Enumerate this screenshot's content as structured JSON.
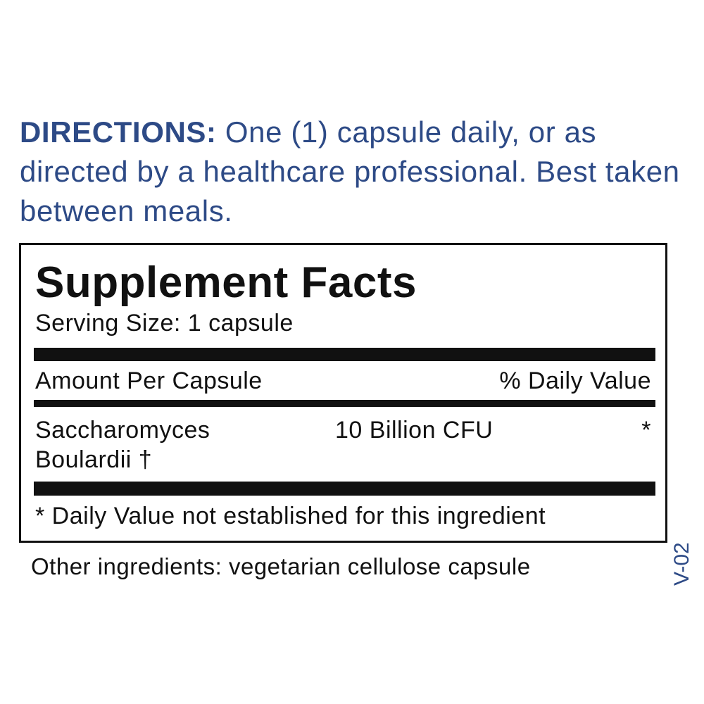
{
  "directions": {
    "label": "DIRECTIONS:",
    "text": " One (1) capsule daily, or as directed by a healthcare professional. Best taken between meals."
  },
  "facts": {
    "title": "Supplement Facts",
    "serving_size": "Serving Size: 1 capsule",
    "header_amount": "Amount Per Capsule",
    "header_dv": "% Daily Value",
    "ingredients": [
      {
        "name_line1": "Saccharomyces",
        "name_line2": "Boulardii †",
        "amount": "10 Billion CFU",
        "dv": "*"
      }
    ],
    "footnote": "* Daily Value not established for this ingredient"
  },
  "other_ingredients": "Other ingredients: vegetarian cellulose capsule",
  "version_code": "V-02",
  "colors": {
    "accent": "#2d4a86",
    "text": "#111111"
  }
}
